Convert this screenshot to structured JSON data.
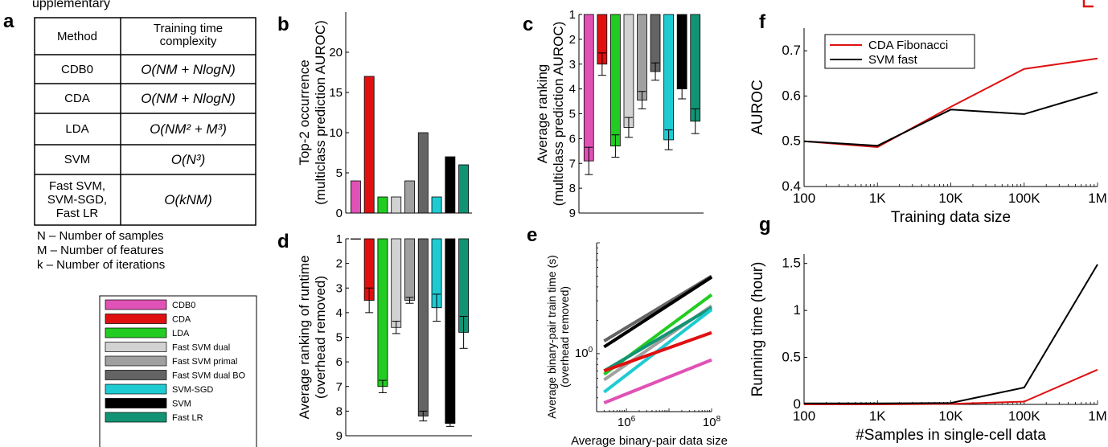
{
  "header_fragment": "upplementary",
  "panels": {
    "a": {
      "letter": "a",
      "table": {
        "headers": [
          "Method",
          "Training time\ncomplexity"
        ],
        "rows": [
          {
            "method": "CDB0",
            "complexity": "O(NM + NlogN)"
          },
          {
            "method": "CDA",
            "complexity": "O(NM + NlogN)"
          },
          {
            "method": "LDA",
            "complexity": "O(NM² + M³)"
          },
          {
            "method": "SVM",
            "complexity": "O(N³)"
          },
          {
            "method": "Fast SVM,\nSVM-SGD,\nFast LR",
            "complexity": "O(kNM)"
          }
        ]
      },
      "notes": [
        "N – Number of samples",
        "M – Number of features",
        "k – Number of iterations"
      ],
      "legend": [
        {
          "label": "CDB0",
          "color": "#e052b5"
        },
        {
          "label": "CDA",
          "color": "#e01010"
        },
        {
          "label": "LDA",
          "color": "#22cc22"
        },
        {
          "label": "Fast SVM dual",
          "color": "#d2d2d2"
        },
        {
          "label": "Fast SVM primal",
          "color": "#a0a0a0"
        },
        {
          "label": "Fast SVM dual BO",
          "color": "#646464"
        },
        {
          "label": "SVM-SGD",
          "color": "#1ecbd2"
        },
        {
          "label": "SVM",
          "color": "#000000"
        },
        {
          "label": "Fast LR",
          "color": "#129474"
        }
      ]
    },
    "b": {
      "letter": "b"
    },
    "c": {
      "letter": "c"
    },
    "d": {
      "letter": "d"
    },
    "e": {
      "letter": "e"
    },
    "f": {
      "letter": "f"
    },
    "g": {
      "letter": "g"
    }
  },
  "chart_data": [
    {
      "id": "b",
      "type": "bar",
      "ylabel": [
        "Top-2 occurrence",
        "(multiclass prediction AUROC)"
      ],
      "ylim": [
        0,
        25
      ],
      "yticks": [
        0,
        5,
        10,
        15,
        20
      ],
      "categories": [
        "CDB0",
        "CDA",
        "LDA",
        "Fast SVM dual",
        "Fast SVM primal",
        "Fast SVM dual BO",
        "SVM-SGD",
        "SVM",
        "Fast LR"
      ],
      "values": [
        4,
        17,
        2,
        2,
        4,
        10,
        2,
        7,
        6
      ]
    },
    {
      "id": "c",
      "type": "bar",
      "ylabel": [
        "Average ranking",
        "(multiclass prediction AUROC)"
      ],
      "ylim": [
        1,
        9
      ],
      "reversed": true,
      "yticks": [
        1,
        2,
        3,
        4,
        5,
        6,
        7,
        8,
        9
      ],
      "categories": [
        "CDB0",
        "CDA",
        "LDA",
        "Fast SVM dual",
        "Fast SVM primal",
        "Fast SVM dual BO",
        "SVM-SGD",
        "SVM",
        "Fast LR"
      ],
      "values": [
        6.9,
        3.0,
        6.3,
        5.55,
        4.45,
        3.3,
        6.05,
        4.0,
        5.3
      ],
      "errors": [
        0.55,
        0.45,
        0.45,
        0.4,
        0.35,
        0.35,
        0.4,
        0.4,
        0.5
      ]
    },
    {
      "id": "d",
      "type": "bar",
      "ylabel": [
        "Average ranking of runtime",
        "(overhead removed)"
      ],
      "ylim": [
        1,
        9
      ],
      "reversed": true,
      "yticks": [
        1,
        2,
        3,
        4,
        5,
        6,
        7,
        8,
        9
      ],
      "categories": [
        "CDB0",
        "CDA",
        "LDA",
        "Fast SVM dual",
        "Fast SVM primal",
        "Fast SVM dual BO",
        "SVM-SGD",
        "SVM",
        "Fast LR"
      ],
      "values": [
        1.0,
        3.5,
        7.0,
        4.6,
        3.5,
        8.2,
        3.8,
        8.5,
        4.8
      ],
      "errors": [
        0,
        0.5,
        0.25,
        0.25,
        0.12,
        0.2,
        0.55,
        0.12,
        0.65
      ]
    },
    {
      "id": "e",
      "type": "line",
      "xlabel": "Average binary-pair data size",
      "ylabel": [
        "Average binary-pair train time (s)",
        "(overhead removed)"
      ],
      "xscale": "log",
      "yscale": "log",
      "xlim": [
        200000,
        100000000
      ],
      "ylim": [
        0.3,
        10
      ],
      "xticks": [
        1000000,
        100000000
      ],
      "xticklabels": [
        "10^6",
        "10^8"
      ],
      "yticks": [
        1
      ],
      "yticklabels": [
        "10^0"
      ],
      "series": [
        {
          "name": "Fast SVM dual BO",
          "x": [
            300000,
            100000000
          ],
          "y": [
            1.3,
            5.0
          ]
        },
        {
          "name": "SVM",
          "x": [
            300000,
            100000000
          ],
          "y": [
            1.15,
            4.9
          ]
        },
        {
          "name": "LDA",
          "x": [
            300000,
            100000000
          ],
          "y": [
            0.65,
            3.4
          ]
        },
        {
          "name": "Fast SVM primal",
          "x": [
            300000,
            100000000
          ],
          "y": [
            0.58,
            2.7
          ]
        },
        {
          "name": "Fast LR",
          "x": [
            300000,
            100000000
          ],
          "y": [
            0.7,
            2.6
          ]
        },
        {
          "name": "SVM-SGD",
          "x": [
            300000,
            100000000
          ],
          "y": [
            0.45,
            2.5
          ]
        },
        {
          "name": "CDA",
          "x": [
            300000,
            100000000
          ],
          "y": [
            0.7,
            1.55
          ]
        },
        {
          "name": "CDB0",
          "x": [
            300000,
            100000000
          ],
          "y": [
            0.36,
            0.88
          ]
        }
      ]
    },
    {
      "id": "f",
      "type": "line",
      "xlabel": "Training data size",
      "ylabel": "AUROC",
      "xscale": "log",
      "xlim": [
        100,
        1000000
      ],
      "xticks": [
        100,
        1000,
        10000,
        100000,
        1000000
      ],
      "xticklabels": [
        "100",
        "1K",
        "10K",
        "100K",
        "1M"
      ],
      "ylim": [
        0.4,
        0.75
      ],
      "yticks": [
        0.4,
        0.5,
        0.6,
        0.7
      ],
      "legend_position": "top-left",
      "series": [
        {
          "name": "CDA Fibonacci",
          "color": "#e01010",
          "x": [
            100,
            1000,
            10000,
            100000,
            1000000
          ],
          "y": [
            0.5,
            0.487,
            0.576,
            0.66,
            0.683
          ]
        },
        {
          "name": "SVM fast",
          "color": "#000000",
          "x": [
            100,
            1000,
            10000,
            100000,
            1000000
          ],
          "y": [
            0.5,
            0.49,
            0.57,
            0.56,
            0.608
          ]
        }
      ]
    },
    {
      "id": "g",
      "type": "line",
      "xlabel": "#Samples in single-cell data",
      "ylabel": "Running time (hour)",
      "xscale": "log",
      "xlim": [
        100,
        1000000
      ],
      "xticks": [
        100,
        1000,
        10000,
        100000,
        1000000
      ],
      "xticklabels": [
        "100",
        "1K",
        "10K",
        "100K",
        "1M"
      ],
      "ylim": [
        0,
        1.6
      ],
      "yticks": [
        0,
        0.5,
        1,
        1.5
      ],
      "series": [
        {
          "name": "CDA Fibonacci",
          "color": "#e01010",
          "x": [
            100,
            1000,
            10000,
            100000,
            1000000
          ],
          "y": [
            0.0,
            0.0,
            0.005,
            0.03,
            0.37
          ]
        },
        {
          "name": "SVM fast",
          "color": "#000000",
          "x": [
            100,
            1000,
            10000,
            100000,
            1000000
          ],
          "y": [
            0.01,
            0.01,
            0.015,
            0.18,
            1.49
          ]
        }
      ]
    }
  ]
}
